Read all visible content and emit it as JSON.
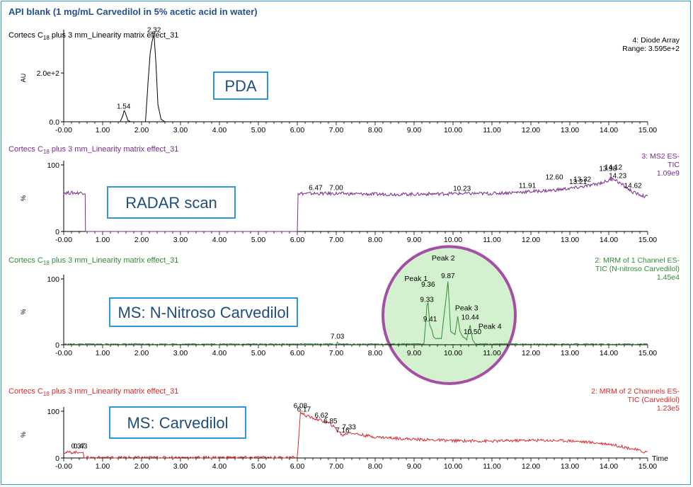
{
  "page": {
    "title": "API blank (1 mg/mL Carvedilol in 5% acetic acid in water)",
    "time_label": "Time"
  },
  "chart_data": [
    {
      "type": "line",
      "method": "Cortecs C",
      "method_sub": "18",
      "method_rest": " plus 3 mm_Linearity matrix effect_31",
      "color": "#000000",
      "box_label": "PDA",
      "ylabel": "AU",
      "y_ticks": [
        {
          "v": 0,
          "label": "0.0"
        },
        {
          "v": 200,
          "label": "2.0e+2"
        }
      ],
      "ylim": [
        0,
        360
      ],
      "xlim": [
        0,
        15
      ],
      "info": [
        "4: Diode Array",
        "Range: 3.595e+2"
      ],
      "x": [
        0,
        1.45,
        1.52,
        1.55,
        1.58,
        1.65,
        1.72,
        2.1,
        2.17,
        2.22,
        2.27,
        2.32,
        2.37,
        2.42,
        2.5,
        2.6,
        15
      ],
      "y": [
        0,
        0,
        25,
        45,
        38,
        5,
        0,
        0,
        170,
        280,
        330,
        359,
        240,
        70,
        10,
        0,
        0
      ],
      "peak_labels": [
        {
          "x": 1.54,
          "y": 45,
          "label": "1.54"
        },
        {
          "x": 2.32,
          "y": 359,
          "label": "2.32"
        }
      ]
    },
    {
      "type": "line",
      "method": "Cortecs C",
      "method_sub": "18",
      "method_rest": " plus 3 mm_Linearity matrix effect_31",
      "color": "#7a2b8c",
      "box_label": "RADAR scan",
      "ylabel": "%",
      "y_ticks": [
        {
          "v": 0,
          "label": "0"
        },
        {
          "v": 100,
          "label": "100"
        }
      ],
      "ylim": [
        0,
        100
      ],
      "xlim": [
        0,
        15
      ],
      "info": [
        "3: MS2 ES-",
        "TIC",
        "1.09e9"
      ],
      "x": [
        0,
        0.55,
        0.56,
        6.0,
        6.02,
        7,
        8,
        9,
        10,
        11,
        12,
        12.6,
        13.2,
        13.6,
        13.98,
        14.12,
        14.23,
        14.4,
        14.62,
        14.9,
        15
      ],
      "y": [
        58,
        58,
        0,
        0,
        57,
        57,
        56,
        56,
        57,
        57,
        60,
        62,
        66,
        70,
        76,
        80,
        75,
        68,
        59,
        53,
        52
      ],
      "peak_labels": [
        {
          "x": 6.47,
          "y": 59,
          "label": "6.47"
        },
        {
          "x": 7.0,
          "y": 59,
          "label": "7.00"
        },
        {
          "x": 10.23,
          "y": 58,
          "label": "10.23"
        },
        {
          "x": 11.91,
          "y": 62,
          "label": "11.91"
        },
        {
          "x": 12.6,
          "y": 75,
          "label": "12.60"
        },
        {
          "x": 13.21,
          "y": 68,
          "label": "13.21"
        },
        {
          "x": 13.32,
          "y": 72,
          "label": "13.32"
        },
        {
          "x": 13.98,
          "y": 88,
          "label": "13.98"
        },
        {
          "x": 14.12,
          "y": 90,
          "label": "14.12"
        },
        {
          "x": 14.23,
          "y": 77,
          "label": "14.23"
        },
        {
          "x": 14.62,
          "y": 62,
          "label": "14.62"
        }
      ]
    },
    {
      "type": "line",
      "method": "Cortecs C",
      "method_sub": "18",
      "method_rest": " plus 3 mm_Linearity matrix effect_31",
      "color": "#2e8b3a",
      "box_label": "MS: N-Nitroso Carvedilol",
      "ylabel": "%",
      "y_ticks": [
        {
          "v": 0,
          "label": "0"
        },
        {
          "v": 100,
          "label": "100"
        }
      ],
      "ylim": [
        0,
        100
      ],
      "xlim": [
        0,
        15
      ],
      "info": [
        "2: MRM of 1 Channel ES-",
        "TIC (N-nitroso Carvedilol)",
        "1.45e4"
      ],
      "x": [
        0,
        7.0,
        7.03,
        7.06,
        9.25,
        9.3,
        9.33,
        9.36,
        9.4,
        9.46,
        9.5,
        9.56,
        9.7,
        9.8,
        9.87,
        9.94,
        10.05,
        10.12,
        10.18,
        10.25,
        10.35,
        10.44,
        10.5,
        10.56,
        10.62,
        15
      ],
      "y": [
        1,
        1,
        4,
        1,
        1,
        35,
        60,
        64,
        30,
        22,
        12,
        9,
        10,
        60,
        96,
        20,
        15,
        43,
        20,
        12,
        8,
        30,
        8,
        2,
        1,
        1
      ],
      "peak_labels": [
        {
          "x": 7.03,
          "y": 6,
          "label": "7.03"
        },
        {
          "x": 9.33,
          "y": 62,
          "label": "9.33"
        },
        {
          "x": 9.36,
          "y": 85,
          "label": "9.36"
        },
        {
          "x": 9.41,
          "y": 32,
          "label": "9.41"
        },
        {
          "x": 9.87,
          "y": 98,
          "label": "9.87"
        },
        {
          "x": 10.44,
          "y": 35,
          "label": "10.44"
        },
        {
          "x": 10.5,
          "y": 13,
          "label": "10.50"
        }
      ],
      "peak_names": [
        {
          "x": 9.05,
          "y": 97,
          "label": "Peak 1"
        },
        {
          "x": 9.75,
          "y": 128,
          "label": "Peak 2"
        },
        {
          "x": 10.35,
          "y": 52,
          "label": "Peak 3"
        },
        {
          "x": 10.95,
          "y": 24,
          "label": "Peak 4"
        }
      ],
      "highlight": {
        "cx": 9.9,
        "cy": 45,
        "rx": 1.7,
        "ry": 104,
        "color": "#a64ea6"
      }
    },
    {
      "type": "line",
      "method": "Cortecs C",
      "method_sub": "18",
      "method_rest": " plus 3 mm_Linearity matrix effect_31",
      "color": "#d62b2b",
      "box_label": "MS: Carvedilol",
      "ylabel": "%",
      "y_ticks": [
        {
          "v": 0,
          "label": "0"
        },
        {
          "v": 100,
          "label": "100"
        }
      ],
      "ylim": [
        0,
        100
      ],
      "xlim": [
        0,
        15
      ],
      "info": [
        "2: MRM of 2 Channels ES-",
        "TIC (Carvedilol)",
        "1.23e5"
      ],
      "x": [
        0,
        0.37,
        0.43,
        0.5,
        0.52,
        6.0,
        6.05,
        6.08,
        6.17,
        6.3,
        6.5,
        6.62,
        6.85,
        7.0,
        7.16,
        7.33,
        7.6,
        8,
        9,
        10,
        11,
        12,
        13,
        14,
        14.6,
        14.9,
        15
      ],
      "y": [
        12,
        12,
        11,
        12,
        1,
        1,
        60,
        98,
        93,
        88,
        83,
        80,
        73,
        62,
        48,
        55,
        50,
        45,
        40,
        37,
        36,
        38,
        37,
        30,
        20,
        13,
        13
      ],
      "peak_labels": [
        {
          "x": 0.37,
          "y": 16,
          "label": "0.37"
        },
        {
          "x": 0.43,
          "y": 16,
          "label": "0.43"
        },
        {
          "x": 6.08,
          "y": 102,
          "label": "6.08"
        },
        {
          "x": 6.17,
          "y": 95,
          "label": "6.17"
        },
        {
          "x": 6.62,
          "y": 82,
          "label": "6.62"
        },
        {
          "x": 6.85,
          "y": 70,
          "label": "6.85"
        },
        {
          "x": 7.16,
          "y": 50,
          "label": "7.16"
        },
        {
          "x": 7.33,
          "y": 57,
          "label": "7.33"
        }
      ]
    }
  ]
}
